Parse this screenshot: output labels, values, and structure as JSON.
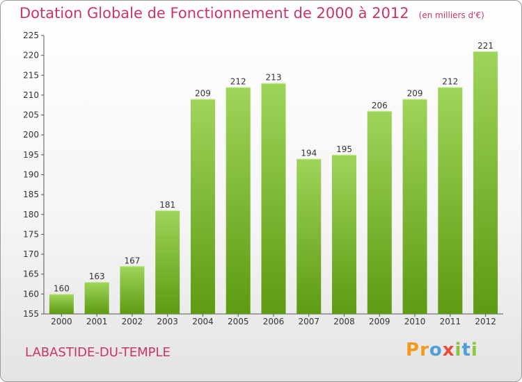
{
  "header": {
    "title": "Dotation Globale de Fonctionnement de 2000 à 2012",
    "subtitle": "(en milliers d'€)"
  },
  "footer": {
    "commune": "LABASTIDE-DU-TEMPLE",
    "logo_letters": [
      "P",
      "r",
      "o",
      "x",
      "i",
      "t",
      "i"
    ],
    "logo_colors": [
      "#f39a1e",
      "#f39a1e",
      "#4f9fd8",
      "#e84b3c",
      "#8cc63f",
      "#4f9fd8",
      "#8cc63f"
    ]
  },
  "chart_data": {
    "type": "bar",
    "title": "Dotation Globale de Fonctionnement de 2000 à 2012",
    "subtitle": "(en milliers d'€)",
    "categories": [
      "2000",
      "2001",
      "2002",
      "2003",
      "2004",
      "2005",
      "2006",
      "2007",
      "2008",
      "2009",
      "2010",
      "2011",
      "2012"
    ],
    "values": [
      160,
      163,
      167,
      181,
      209,
      212,
      213,
      194,
      195,
      206,
      209,
      212,
      221
    ],
    "ylim": [
      155,
      225
    ],
    "yticks": [
      155,
      160,
      165,
      170,
      175,
      180,
      185,
      190,
      195,
      200,
      205,
      210,
      215,
      220,
      225
    ],
    "grid": false,
    "colors": {
      "bar_top": "#9fd45a",
      "bar_bottom": "#5e9a12",
      "axis": "#555555"
    }
  }
}
